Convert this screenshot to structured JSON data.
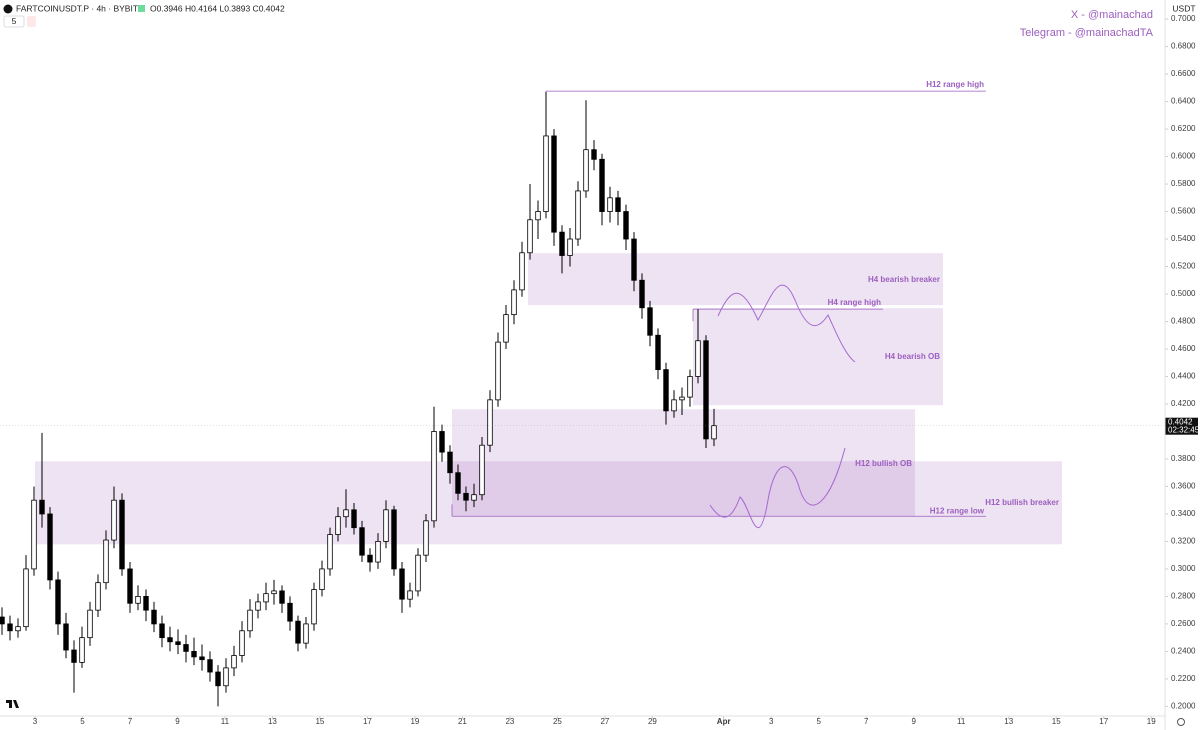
{
  "header": {
    "symbol": "FARTCOINUSDT.P · 4h · BYBIT",
    "quote": "O0.3946 H0.4164 L0.3893 C0.4042",
    "indicator": "5",
    "currency": "USDT",
    "social_x": "X - @mainachad",
    "social_telegram": "Telegram - @mainachadTA"
  },
  "chart_data": {
    "type": "candlestick",
    "title": "FARTCOINUSDT.P",
    "countdown": "02:32:45",
    "up_color": "#ffffff",
    "down_color": "#000000",
    "zone_color": "#9b59b6",
    "ylim": [
      0.193,
      0.7139
    ],
    "yticks": [
      {
        "value": 0.2,
        "label": "0.2000"
      },
      {
        "value": 0.22,
        "label": "0.2200"
      },
      {
        "value": 0.24,
        "label": "0.2400"
      },
      {
        "value": 0.26,
        "label": "0.2600"
      },
      {
        "value": 0.28,
        "label": "0.2800"
      },
      {
        "value": 0.3,
        "label": "0.3000"
      },
      {
        "value": 0.32,
        "label": "0.3200"
      },
      {
        "value": 0.34,
        "label": "0.3400"
      },
      {
        "value": 0.36,
        "label": "0.3600"
      },
      {
        "value": 0.38,
        "label": "0.3800"
      },
      {
        "value": 0.4,
        "label": "0.4000"
      },
      {
        "value": 0.42,
        "label": "0.4200"
      },
      {
        "value": 0.44,
        "label": "0.4400"
      },
      {
        "value": 0.46,
        "label": "0.4600"
      },
      {
        "value": 0.48,
        "label": "0.4800"
      },
      {
        "value": 0.5,
        "label": "0.5000"
      },
      {
        "value": 0.52,
        "label": "0.5200"
      },
      {
        "value": 0.54,
        "label": "0.5400"
      },
      {
        "value": 0.56,
        "label": "0.5600"
      },
      {
        "value": 0.58,
        "label": "0.5800"
      },
      {
        "value": 0.6,
        "label": "0.6000"
      },
      {
        "value": 0.62,
        "label": "0.6200"
      },
      {
        "value": 0.64,
        "label": "0.6400"
      },
      {
        "value": 0.66,
        "label": "0.6600"
      },
      {
        "value": 0.68,
        "label": "0.6800"
      },
      {
        "value": 0.7,
        "label": "0.7000"
      }
    ],
    "xlim": [
      1.53,
      50.58
    ],
    "xticks": [
      3,
      5,
      7,
      9,
      11,
      13,
      15,
      17,
      19,
      21,
      23,
      25,
      27,
      29,
      {
        "value": 32,
        "label": "Apr"
      },
      {
        "value": 34,
        "label": "3"
      },
      {
        "value": 36,
        "label": "5"
      },
      {
        "value": 38,
        "label": "7"
      },
      {
        "value": 40,
        "label": "9"
      },
      {
        "value": 42,
        "label": "11"
      },
      {
        "value": 44,
        "label": "13"
      },
      {
        "value": 46,
        "label": "15"
      },
      {
        "value": 48,
        "label": "17"
      },
      {
        "value": 50,
        "label": "19"
      }
    ],
    "ohlc": [
      [
        0.265,
        0.272,
        0.252,
        0.26
      ],
      [
        0.26,
        0.266,
        0.248,
        0.255
      ],
      [
        0.255,
        0.264,
        0.25,
        0.258
      ],
      [
        0.258,
        0.31,
        0.255,
        0.3
      ],
      [
        0.3,
        0.36,
        0.295,
        0.35
      ],
      [
        0.35,
        0.399,
        0.33,
        0.34
      ],
      [
        0.34,
        0.345,
        0.285,
        0.292
      ],
      [
        0.292,
        0.298,
        0.252,
        0.26
      ],
      [
        0.26,
        0.268,
        0.235,
        0.241
      ],
      [
        0.241,
        0.248,
        0.21,
        0.232
      ],
      [
        0.232,
        0.258,
        0.228,
        0.25
      ],
      [
        0.25,
        0.276,
        0.244,
        0.27
      ],
      [
        0.27,
        0.296,
        0.265,
        0.29
      ],
      [
        0.29,
        0.328,
        0.285,
        0.321
      ],
      [
        0.321,
        0.36,
        0.315,
        0.35
      ],
      [
        0.35,
        0.355,
        0.295,
        0.3
      ],
      [
        0.3,
        0.305,
        0.268,
        0.275
      ],
      [
        0.275,
        0.288,
        0.27,
        0.28
      ],
      [
        0.28,
        0.285,
        0.262,
        0.27
      ],
      [
        0.27,
        0.276,
        0.254,
        0.26
      ],
      [
        0.26,
        0.266,
        0.243,
        0.25
      ],
      [
        0.25,
        0.258,
        0.24,
        0.247
      ],
      [
        0.247,
        0.256,
        0.238,
        0.245
      ],
      [
        0.245,
        0.252,
        0.232,
        0.24
      ],
      [
        0.24,
        0.25,
        0.23,
        0.236
      ],
      [
        0.236,
        0.245,
        0.226,
        0.234
      ],
      [
        0.234,
        0.24,
        0.218,
        0.225
      ],
      [
        0.225,
        0.23,
        0.2,
        0.215
      ],
      [
        0.215,
        0.235,
        0.21,
        0.228
      ],
      [
        0.228,
        0.244,
        0.222,
        0.237
      ],
      [
        0.237,
        0.262,
        0.232,
        0.255
      ],
      [
        0.255,
        0.278,
        0.25,
        0.27
      ],
      [
        0.27,
        0.282,
        0.264,
        0.276
      ],
      [
        0.276,
        0.29,
        0.27,
        0.282
      ],
      [
        0.282,
        0.292,
        0.274,
        0.284
      ],
      [
        0.284,
        0.288,
        0.268,
        0.275
      ],
      [
        0.275,
        0.28,
        0.255,
        0.262
      ],
      [
        0.262,
        0.266,
        0.24,
        0.246
      ],
      [
        0.246,
        0.265,
        0.242,
        0.26
      ],
      [
        0.26,
        0.29,
        0.255,
        0.285
      ],
      [
        0.285,
        0.306,
        0.28,
        0.3
      ],
      [
        0.3,
        0.33,
        0.295,
        0.325
      ],
      [
        0.325,
        0.345,
        0.32,
        0.338
      ],
      [
        0.338,
        0.358,
        0.33,
        0.343
      ],
      [
        0.343,
        0.348,
        0.325,
        0.33
      ],
      [
        0.33,
        0.335,
        0.305,
        0.31
      ],
      [
        0.31,
        0.315,
        0.298,
        0.305
      ],
      [
        0.305,
        0.326,
        0.3,
        0.32
      ],
      [
        0.32,
        0.35,
        0.315,
        0.343
      ],
      [
        0.343,
        0.346,
        0.295,
        0.3
      ],
      [
        0.3,
        0.305,
        0.268,
        0.278
      ],
      [
        0.278,
        0.29,
        0.272,
        0.284
      ],
      [
        0.284,
        0.315,
        0.28,
        0.31
      ],
      [
        0.31,
        0.34,
        0.305,
        0.335
      ],
      [
        0.335,
        0.418,
        0.33,
        0.4
      ],
      [
        0.4,
        0.405,
        0.378,
        0.385
      ],
      [
        0.385,
        0.39,
        0.362,
        0.37
      ],
      [
        0.37,
        0.376,
        0.35,
        0.355
      ],
      [
        0.355,
        0.36,
        0.342,
        0.35
      ],
      [
        0.35,
        0.362,
        0.345,
        0.354
      ],
      [
        0.354,
        0.396,
        0.35,
        0.39
      ],
      [
        0.39,
        0.43,
        0.385,
        0.423
      ],
      [
        0.423,
        0.472,
        0.418,
        0.465
      ],
      [
        0.465,
        0.492,
        0.46,
        0.485
      ],
      [
        0.485,
        0.51,
        0.478,
        0.503
      ],
      [
        0.503,
        0.538,
        0.498,
        0.53
      ],
      [
        0.53,
        0.58,
        0.525,
        0.554
      ],
      [
        0.554,
        0.568,
        0.54,
        0.56
      ],
      [
        0.56,
        0.647,
        0.555,
        0.615
      ],
      [
        0.615,
        0.62,
        0.535,
        0.545
      ],
      [
        0.545,
        0.55,
        0.515,
        0.528
      ],
      [
        0.528,
        0.548,
        0.52,
        0.54
      ],
      [
        0.54,
        0.582,
        0.535,
        0.575
      ],
      [
        0.575,
        0.641,
        0.57,
        0.605
      ],
      [
        0.605,
        0.612,
        0.59,
        0.598
      ],
      [
        0.598,
        0.602,
        0.55,
        0.56
      ],
      [
        0.56,
        0.578,
        0.552,
        0.57
      ],
      [
        0.57,
        0.575,
        0.55,
        0.56
      ],
      [
        0.56,
        0.565,
        0.532,
        0.54
      ],
      [
        0.54,
        0.545,
        0.502,
        0.51
      ],
      [
        0.51,
        0.515,
        0.482,
        0.49
      ],
      [
        0.49,
        0.495,
        0.462,
        0.47
      ],
      [
        0.47,
        0.475,
        0.438,
        0.445
      ],
      [
        0.445,
        0.45,
        0.405,
        0.415
      ],
      [
        0.415,
        0.43,
        0.41,
        0.423
      ],
      [
        0.423,
        0.432,
        0.412,
        0.425
      ],
      [
        0.425,
        0.445,
        0.418,
        0.44
      ],
      [
        0.44,
        0.489,
        0.435,
        0.466
      ],
      [
        0.466,
        0.47,
        0.388,
        0.3946
      ],
      [
        0.3946,
        0.4164,
        0.3893,
        0.4042
      ]
    ],
    "zones": [
      {
        "label": "H4 bearish breaker",
        "top": 0.5297,
        "bottom": 0.4919
      },
      {
        "label": "H4 bearish OB",
        "top": 0.4897,
        "bottom": 0.4191
      },
      {
        "label": "H12 bullish OB",
        "top": 0.4162,
        "bottom": 0.3383
      },
      {
        "label": "H12 bullish breaker",
        "top": 0.3783,
        "bottom": 0.3179
      }
    ],
    "levels": [
      {
        "label": "H12 range high",
        "value": 0.6476
      },
      {
        "label": "H4 range high",
        "value": 0.489
      },
      {
        "label": "H12 range low",
        "value": 0.3383
      }
    ]
  }
}
